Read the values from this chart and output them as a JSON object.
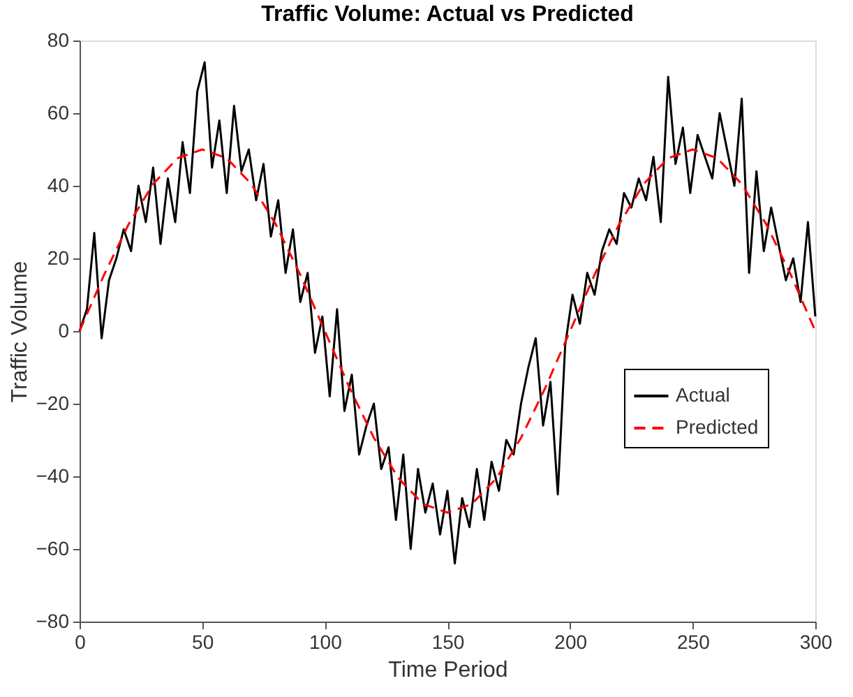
{
  "chart_data": {
    "type": "line",
    "title": "Traffic Volume: Actual vs Predicted",
    "xlabel": "Time Period",
    "ylabel": "Traffic Volume",
    "xlim": [
      0,
      300
    ],
    "xticks": [
      0,
      50,
      100,
      150,
      200,
      250,
      300
    ],
    "ylim": [
      -80,
      80
    ],
    "yticks": [
      -80,
      -60,
      -40,
      -20,
      0,
      20,
      40,
      60,
      80
    ],
    "grid": false,
    "legend": "right",
    "marker": "none",
    "series": [
      {
        "name": "Actual",
        "color": "#000000",
        "line_style": "solid",
        "x": [
          0,
          3,
          6,
          9,
          12,
          15,
          18,
          21,
          24,
          27,
          30,
          33,
          36,
          39,
          42,
          45,
          48,
          51,
          54,
          57,
          60,
          63,
          66,
          69,
          72,
          75,
          78,
          81,
          84,
          87,
          90,
          93,
          96,
          99,
          102,
          105,
          108,
          111,
          114,
          117,
          120,
          123,
          126,
          129,
          132,
          135,
          138,
          141,
          144,
          147,
          150,
          153,
          156,
          159,
          162,
          165,
          168,
          171,
          174,
          177,
          180,
          183,
          186,
          189,
          192,
          195,
          198,
          201,
          204,
          207,
          210,
          213,
          216,
          219,
          222,
          225,
          228,
          231,
          234,
          237,
          240,
          243,
          246,
          249,
          252,
          255,
          258,
          261,
          264,
          267,
          270,
          273,
          276,
          279,
          282,
          285,
          288,
          291,
          294,
          297,
          300
        ],
        "values": [
          0,
          6,
          27,
          -2,
          14,
          20,
          28,
          22,
          40,
          30,
          45,
          24,
          42,
          30,
          52,
          38,
          66,
          74,
          45,
          58,
          38,
          62,
          44,
          50,
          36,
          46,
          26,
          36,
          16,
          28,
          8,
          16,
          -6,
          4,
          -18,
          6,
          -22,
          -12,
          -34,
          -26,
          -20,
          -38,
          -32,
          -52,
          -34,
          -60,
          -38,
          -50,
          -42,
          -56,
          -44,
          -64,
          -46,
          -54,
          -38,
          -52,
          -36,
          -44,
          -30,
          -34,
          -20,
          -10,
          -2,
          -26,
          -14,
          -45,
          -4,
          10,
          2,
          16,
          10,
          22,
          28,
          24,
          38,
          34,
          42,
          36,
          48,
          30,
          70,
          46,
          56,
          38,
          54,
          48,
          42,
          60,
          50,
          40,
          64,
          16,
          44,
          22,
          34,
          24,
          14,
          20,
          8,
          30,
          4
        ]
      },
      {
        "name": "Predicted",
        "color": "#ff0000",
        "line_style": "dashed",
        "x": [
          0,
          10,
          20,
          30,
          40,
          50,
          60,
          70,
          80,
          90,
          100,
          110,
          120,
          130,
          140,
          150,
          160,
          170,
          180,
          190,
          200,
          210,
          220,
          230,
          240,
          250,
          260,
          270,
          280,
          290,
          300
        ],
        "values": [
          0,
          15.5,
          29.4,
          40.5,
          47.6,
          50,
          47.6,
          40.5,
          29.4,
          15.5,
          0,
          -15.5,
          -29.4,
          -40.5,
          -47.6,
          -50,
          -47.6,
          -40.5,
          -29.4,
          -15.5,
          0,
          15.5,
          29.4,
          40.5,
          47.6,
          50,
          47.6,
          40.5,
          29.4,
          15.5,
          0
        ]
      }
    ]
  }
}
